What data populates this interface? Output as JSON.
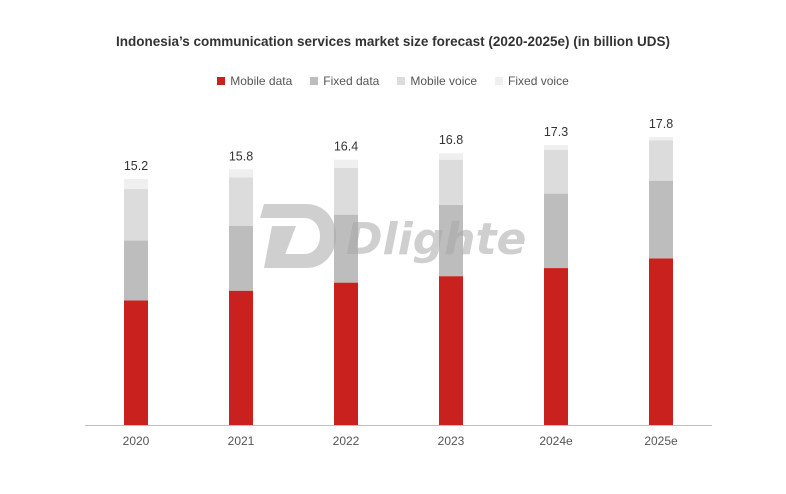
{
  "chart_data": {
    "type": "bar",
    "stacked": true,
    "title": "Indonesia’s communication services market size forecast (2020-2025e) (in billion UDS)",
    "categories": [
      "2020",
      "2021",
      "2022",
      "2023",
      "2024e",
      "2025e"
    ],
    "totals": [
      "15.2",
      "15.8",
      "16.4",
      "16.8",
      "17.3",
      "17.8"
    ],
    "series": [
      {
        "name": "Mobile data",
        "color": "#c9221e",
        "values": [
          7.7,
          8.3,
          8.8,
          9.2,
          9.7,
          10.3
        ]
      },
      {
        "name": "Fixed data",
        "color": "#bdbdbd",
        "values": [
          3.7,
          4.0,
          4.2,
          4.4,
          4.6,
          4.8
        ]
      },
      {
        "name": "Mobile voice",
        "color": "#dcdcdc",
        "values": [
          3.2,
          3.0,
          2.9,
          2.8,
          2.7,
          2.5
        ]
      },
      {
        "name": "Fixed voice",
        "color": "#efefef",
        "values": [
          0.6,
          0.5,
          0.5,
          0.4,
          0.3,
          0.2
        ]
      }
    ],
    "ylim": [
      0,
      19
    ],
    "grid": false,
    "legend_position": "top-center"
  },
  "watermark": {
    "text": "Dlightek"
  }
}
